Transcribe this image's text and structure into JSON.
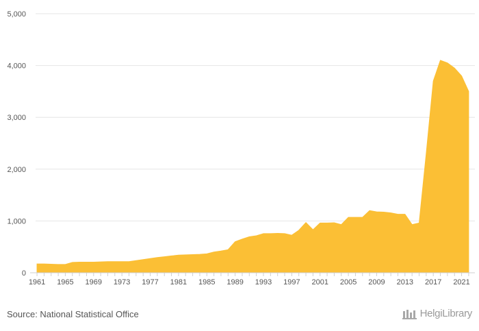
{
  "chart_data": {
    "type": "area",
    "title": "",
    "xlabel": "",
    "ylabel": "",
    "x": [
      1961,
      1962,
      1963,
      1964,
      1965,
      1966,
      1967,
      1968,
      1969,
      1970,
      1971,
      1972,
      1973,
      1974,
      1975,
      1976,
      1977,
      1978,
      1979,
      1980,
      1981,
      1982,
      1983,
      1984,
      1985,
      1986,
      1987,
      1988,
      1989,
      1990,
      1991,
      1992,
      1993,
      1994,
      1995,
      1996,
      1997,
      1998,
      1999,
      2000,
      2001,
      2002,
      2003,
      2004,
      2005,
      2006,
      2007,
      2008,
      2009,
      2010,
      2011,
      2012,
      2013,
      2014,
      2015,
      2016,
      2017,
      2018,
      2019,
      2020,
      2021,
      2022
    ],
    "values": [
      170,
      170,
      165,
      160,
      160,
      200,
      205,
      205,
      205,
      210,
      215,
      215,
      215,
      215,
      235,
      255,
      275,
      295,
      310,
      325,
      340,
      345,
      350,
      355,
      365,
      400,
      420,
      445,
      600,
      650,
      695,
      715,
      755,
      755,
      760,
      755,
      725,
      820,
      970,
      830,
      960,
      960,
      965,
      930,
      1070,
      1070,
      1070,
      1200,
      1175,
      1170,
      1155,
      1130,
      1130,
      930,
      960,
      2300,
      3700,
      4100,
      4050,
      3950,
      3800,
      3500
    ],
    "ylim": [
      0,
      5000
    ],
    "y_ticks": [
      "0",
      "1,000",
      "2,000",
      "3,000",
      "4,000",
      "5,000"
    ],
    "x_tick_labels": [
      "1961",
      "1965",
      "1969",
      "1973",
      "1977",
      "1981",
      "1985",
      "1989",
      "1993",
      "1997",
      "2001",
      "2005",
      "2009",
      "2013",
      "2017",
      "2021"
    ],
    "grid": true,
    "legend": "none",
    "color": "#fbbf35"
  },
  "source": "Source: National Statistical Office",
  "brand": "HelgiLibrary"
}
